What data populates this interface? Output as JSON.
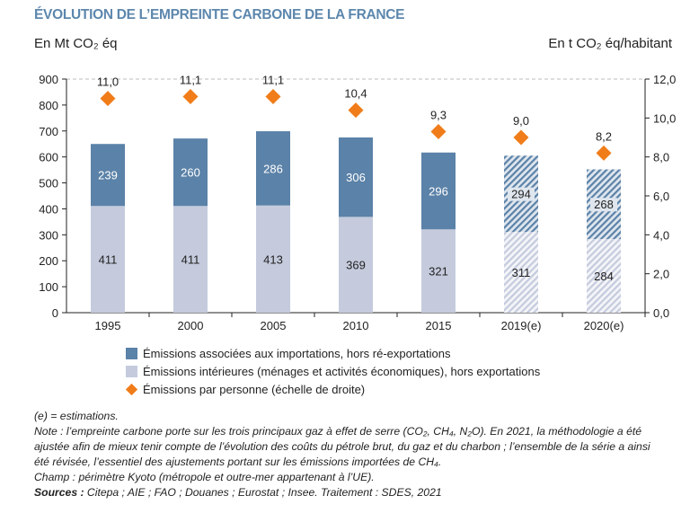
{
  "chart_data": {
    "type": "bar",
    "title": "ÉVOLUTION DE L’EMPREINTE CARBONE DE LA FRANCE",
    "ylabel_left": "En Mt CO₂ éq",
    "ylabel_right": "En t CO₂ éq/habitant",
    "ylim_left": [
      0,
      900
    ],
    "ylim_right": [
      0,
      12
    ],
    "left_ticks": [
      "0",
      "100",
      "200",
      "300",
      "400",
      "500",
      "600",
      "700",
      "800",
      "900"
    ],
    "right_ticks": [
      "0,0",
      "2,0",
      "4,0",
      "6,0",
      "8,0",
      "10,0",
      "12,0"
    ],
    "categories": [
      "1995",
      "2000",
      "2005",
      "2010",
      "2015",
      "2019(e)",
      "2020(e)"
    ],
    "estimated": [
      false,
      false,
      false,
      false,
      false,
      true,
      true
    ],
    "grid": "dashed top line only",
    "legend_position": "bottom",
    "series": [
      {
        "name": "Émissions intérieures (ménages et activités économiques), hors exportations",
        "kind": "stacked-bar",
        "color": "#c5cbdd",
        "values": [
          411,
          411,
          413,
          369,
          321,
          311,
          284
        ],
        "labels": [
          "411",
          "411",
          "413",
          "369",
          "321",
          "311",
          "284"
        ]
      },
      {
        "name": "Émissions associées aux importations, hors ré-exportations",
        "kind": "stacked-bar",
        "color": "#5b82a8",
        "values": [
          239,
          260,
          286,
          306,
          296,
          294,
          268
        ],
        "labels": [
          "239",
          "260",
          "286",
          "306",
          "296",
          "294",
          "268"
        ]
      },
      {
        "name": "Émissions par personne (échelle de droite)",
        "kind": "scatter",
        "axis": "right",
        "color": "#f07d1a",
        "values": [
          11.0,
          11.1,
          11.1,
          10.4,
          9.3,
          9.0,
          8.2
        ],
        "labels": [
          "11,0",
          "11,1",
          "11,1",
          "10,4",
          "9,3",
          "9,0",
          "8,2"
        ]
      }
    ]
  },
  "notes": {
    "estimations": "(e) = estimations.",
    "note": "Note : l’empreinte carbone porte sur les trois principaux gaz à effet de serre (CO₂, CH₄, N₂O). En 2021, la méthodologie a été ajustée afin de mieux tenir compte de l’évolution des coûts du pétrole brut, du gaz et du charbon ; l’ensemble de la série a ainsi été révisée, l’essentiel des ajustements portant sur les émissions importées de CH₄.",
    "champ": "Champ : périmètre Kyoto (métropole et outre-mer appartenant à l’UE).",
    "sources_label": "Sources :",
    "sources": " Citepa ; AIE ; FAO ; Douanes ; Eurostat ; Insee. Traitement : SDES, 2021"
  }
}
